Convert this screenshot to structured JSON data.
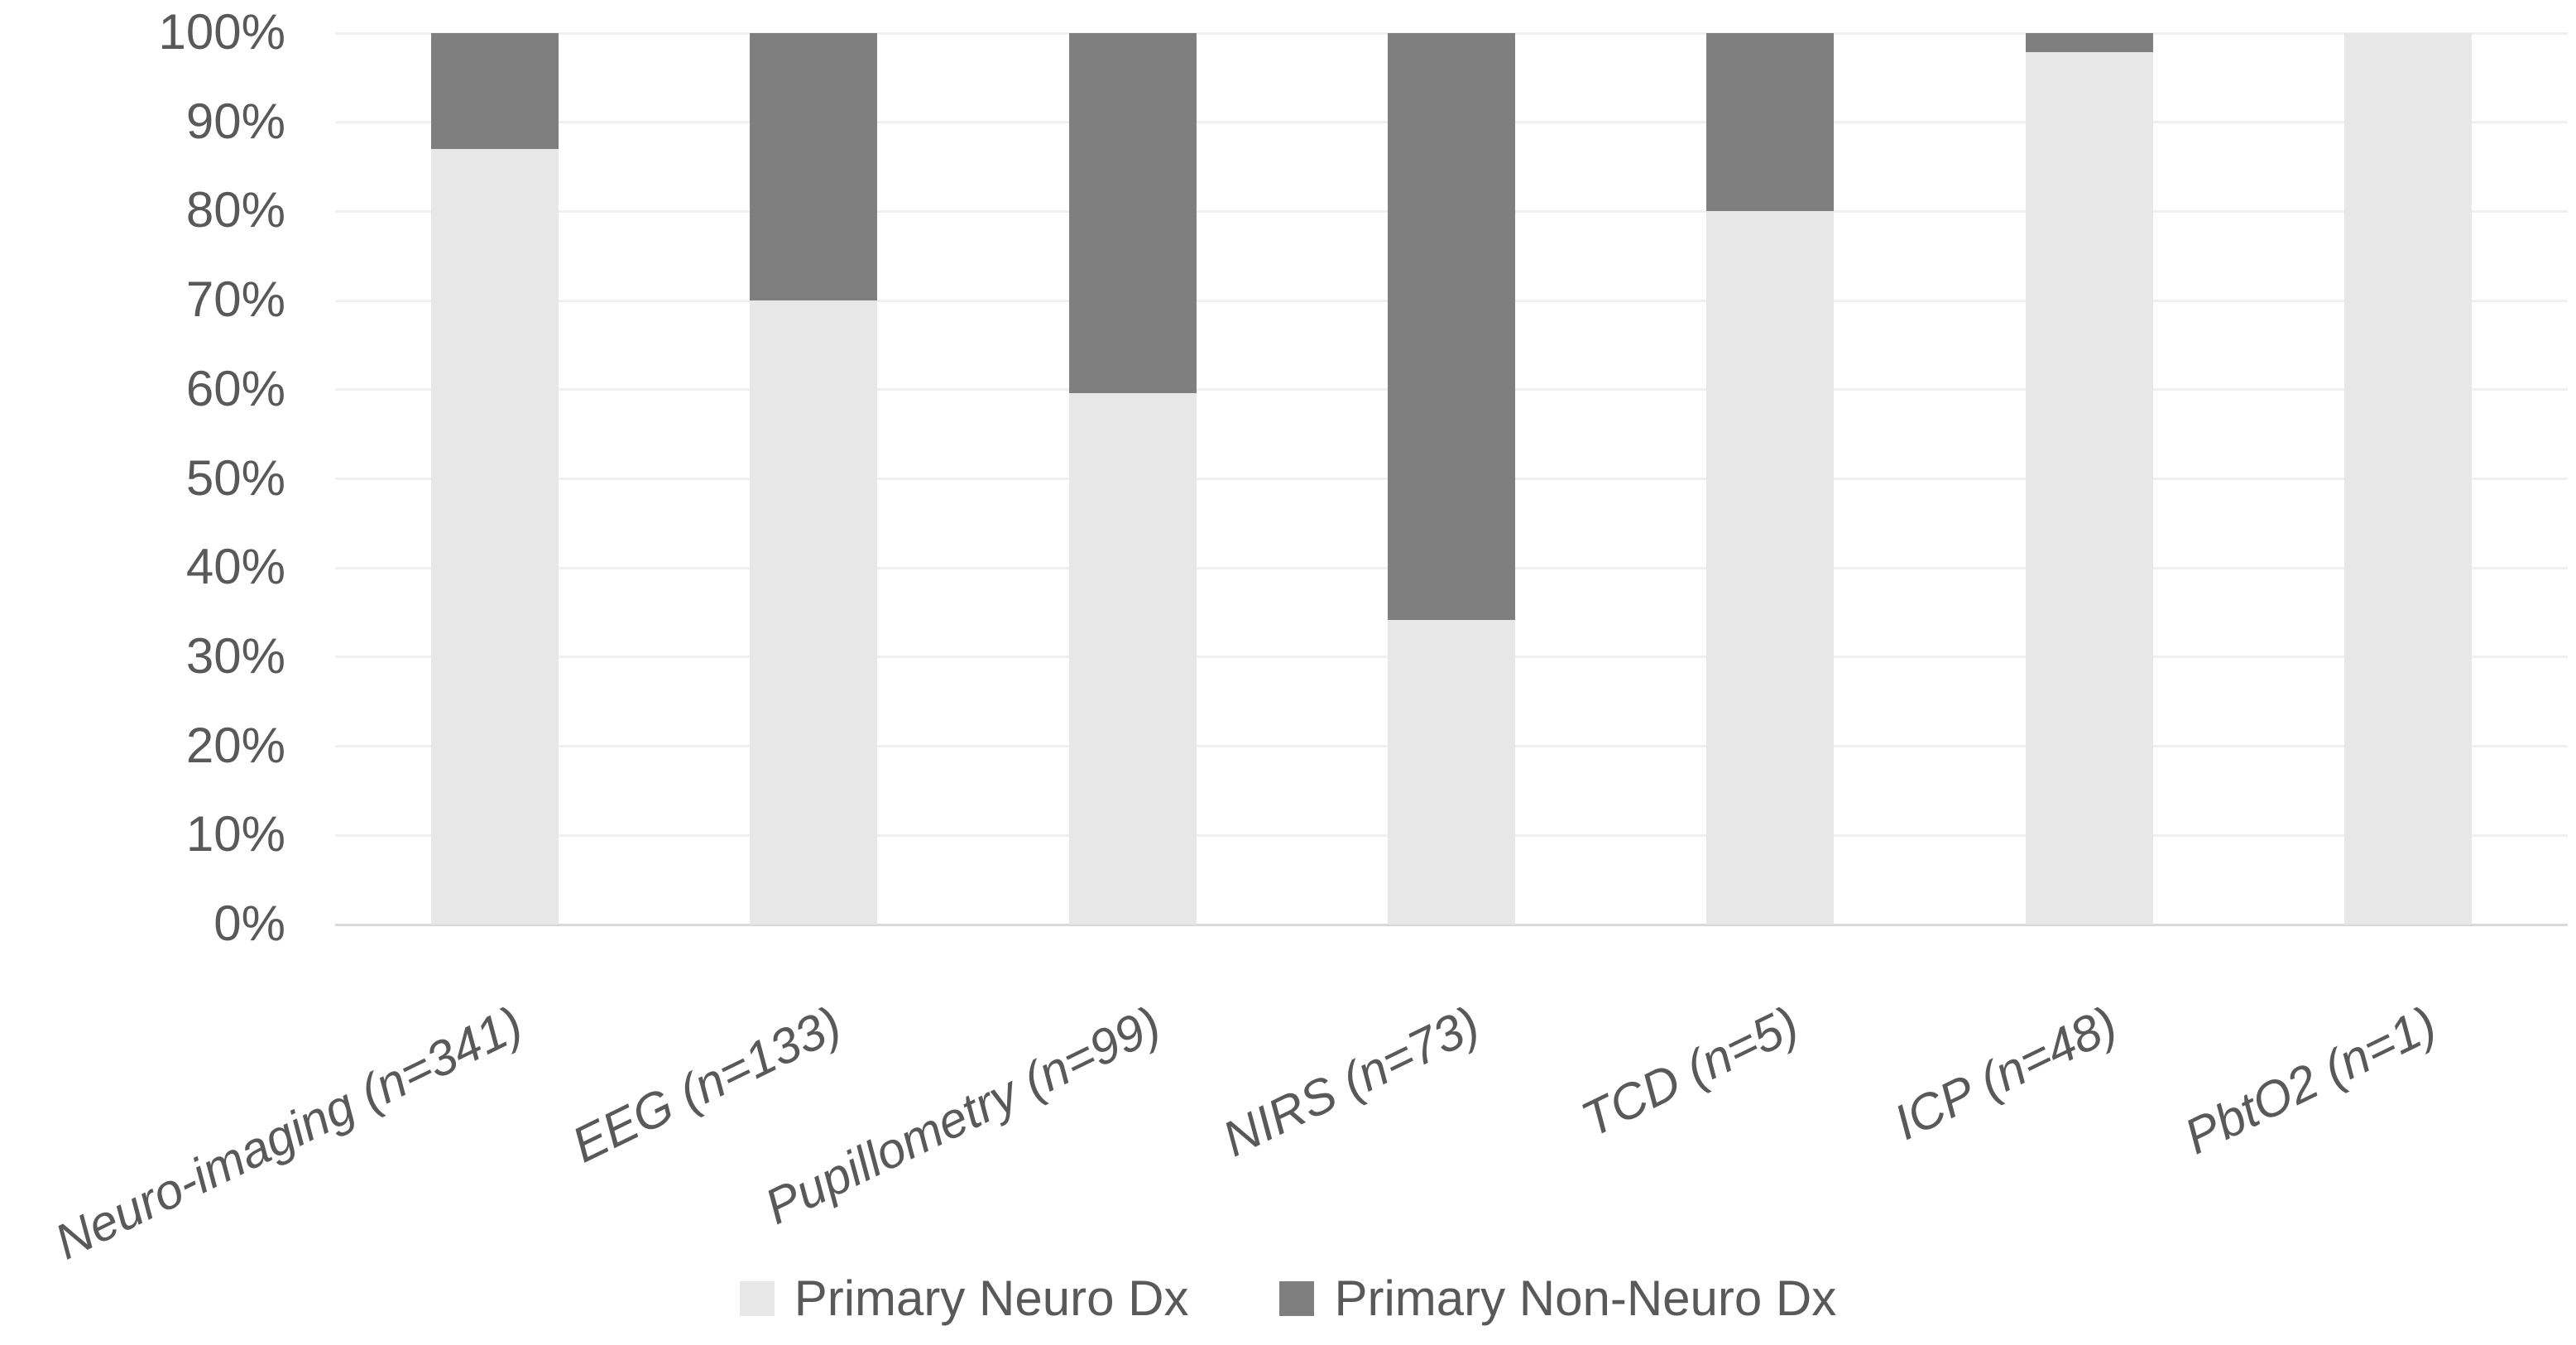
{
  "chart_data": {
    "type": "bar",
    "variant": "100%-stacked-column",
    "title": "",
    "categories": [
      "Neuro-imaging (n=341)",
      "EEG (n=133)",
      "Pupillometry (n=99)",
      "NIRS (n=73)",
      "TCD (n=5)",
      "ICP (n=48)",
      "PbtO2 (n=1)"
    ],
    "series": [
      {
        "name": "Primary Neuro Dx",
        "color": "#e7e7e7",
        "values_pct": [
          87,
          70,
          59.6,
          34.2,
          80,
          97.9,
          100
        ]
      },
      {
        "name": "Primary Non-Neuro Dx",
        "color": "#7f7f7f",
        "values_pct": [
          13,
          30,
          40.4,
          65.8,
          20,
          2.1,
          0
        ]
      }
    ],
    "y_axis": {
      "min": 0,
      "max": 100,
      "tick_step": 10,
      "ticks": [
        "0%",
        "10%",
        "20%",
        "30%",
        "40%",
        "50%",
        "60%",
        "70%",
        "80%",
        "90%",
        "100%"
      ],
      "grid": true,
      "gridline_color": "#f0f0f0",
      "axis_line_color": "#d9d9d9",
      "label_color": "#595959"
    },
    "x_axis": {
      "label_rotation_deg": -26,
      "label_style": "italic",
      "label_color": "#595959"
    },
    "legend": {
      "position": "bottom-center"
    },
    "background_color": "#ffffff"
  }
}
